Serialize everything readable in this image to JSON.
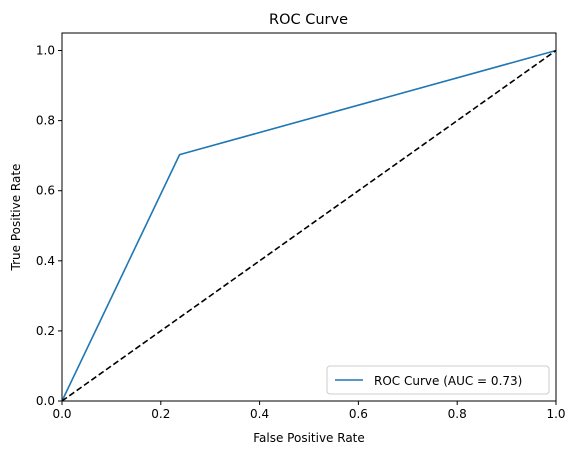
{
  "chart_data": {
    "type": "line",
    "title": "ROC Curve",
    "xlabel": "False Positive Rate",
    "ylabel": "True Positive Rate",
    "xlim": [
      0.0,
      1.0
    ],
    "ylim": [
      0.0,
      1.05
    ],
    "xticks": [
      0.0,
      0.2,
      0.4,
      0.6,
      0.8,
      1.0
    ],
    "yticks": [
      0.0,
      0.2,
      0.4,
      0.6,
      0.8,
      1.0
    ],
    "xtick_labels": [
      "0.0",
      "0.2",
      "0.4",
      "0.6",
      "0.8",
      "1.0"
    ],
    "ytick_labels": [
      "0.0",
      "0.2",
      "0.4",
      "0.6",
      "0.8",
      "1.0"
    ],
    "grid": false,
    "legend_position": "lower-right",
    "series": [
      {
        "name": "ROC Curve (AUC = 0.73)",
        "color": "#1f77b4",
        "style": "solid",
        "x": [
          0.0,
          0.238,
          1.0
        ],
        "y": [
          0.0,
          0.703,
          1.0
        ]
      },
      {
        "color": "#000000",
        "style": "dashed",
        "x": [
          0.0,
          1.0
        ],
        "y": [
          0.0,
          1.0
        ]
      }
    ]
  }
}
